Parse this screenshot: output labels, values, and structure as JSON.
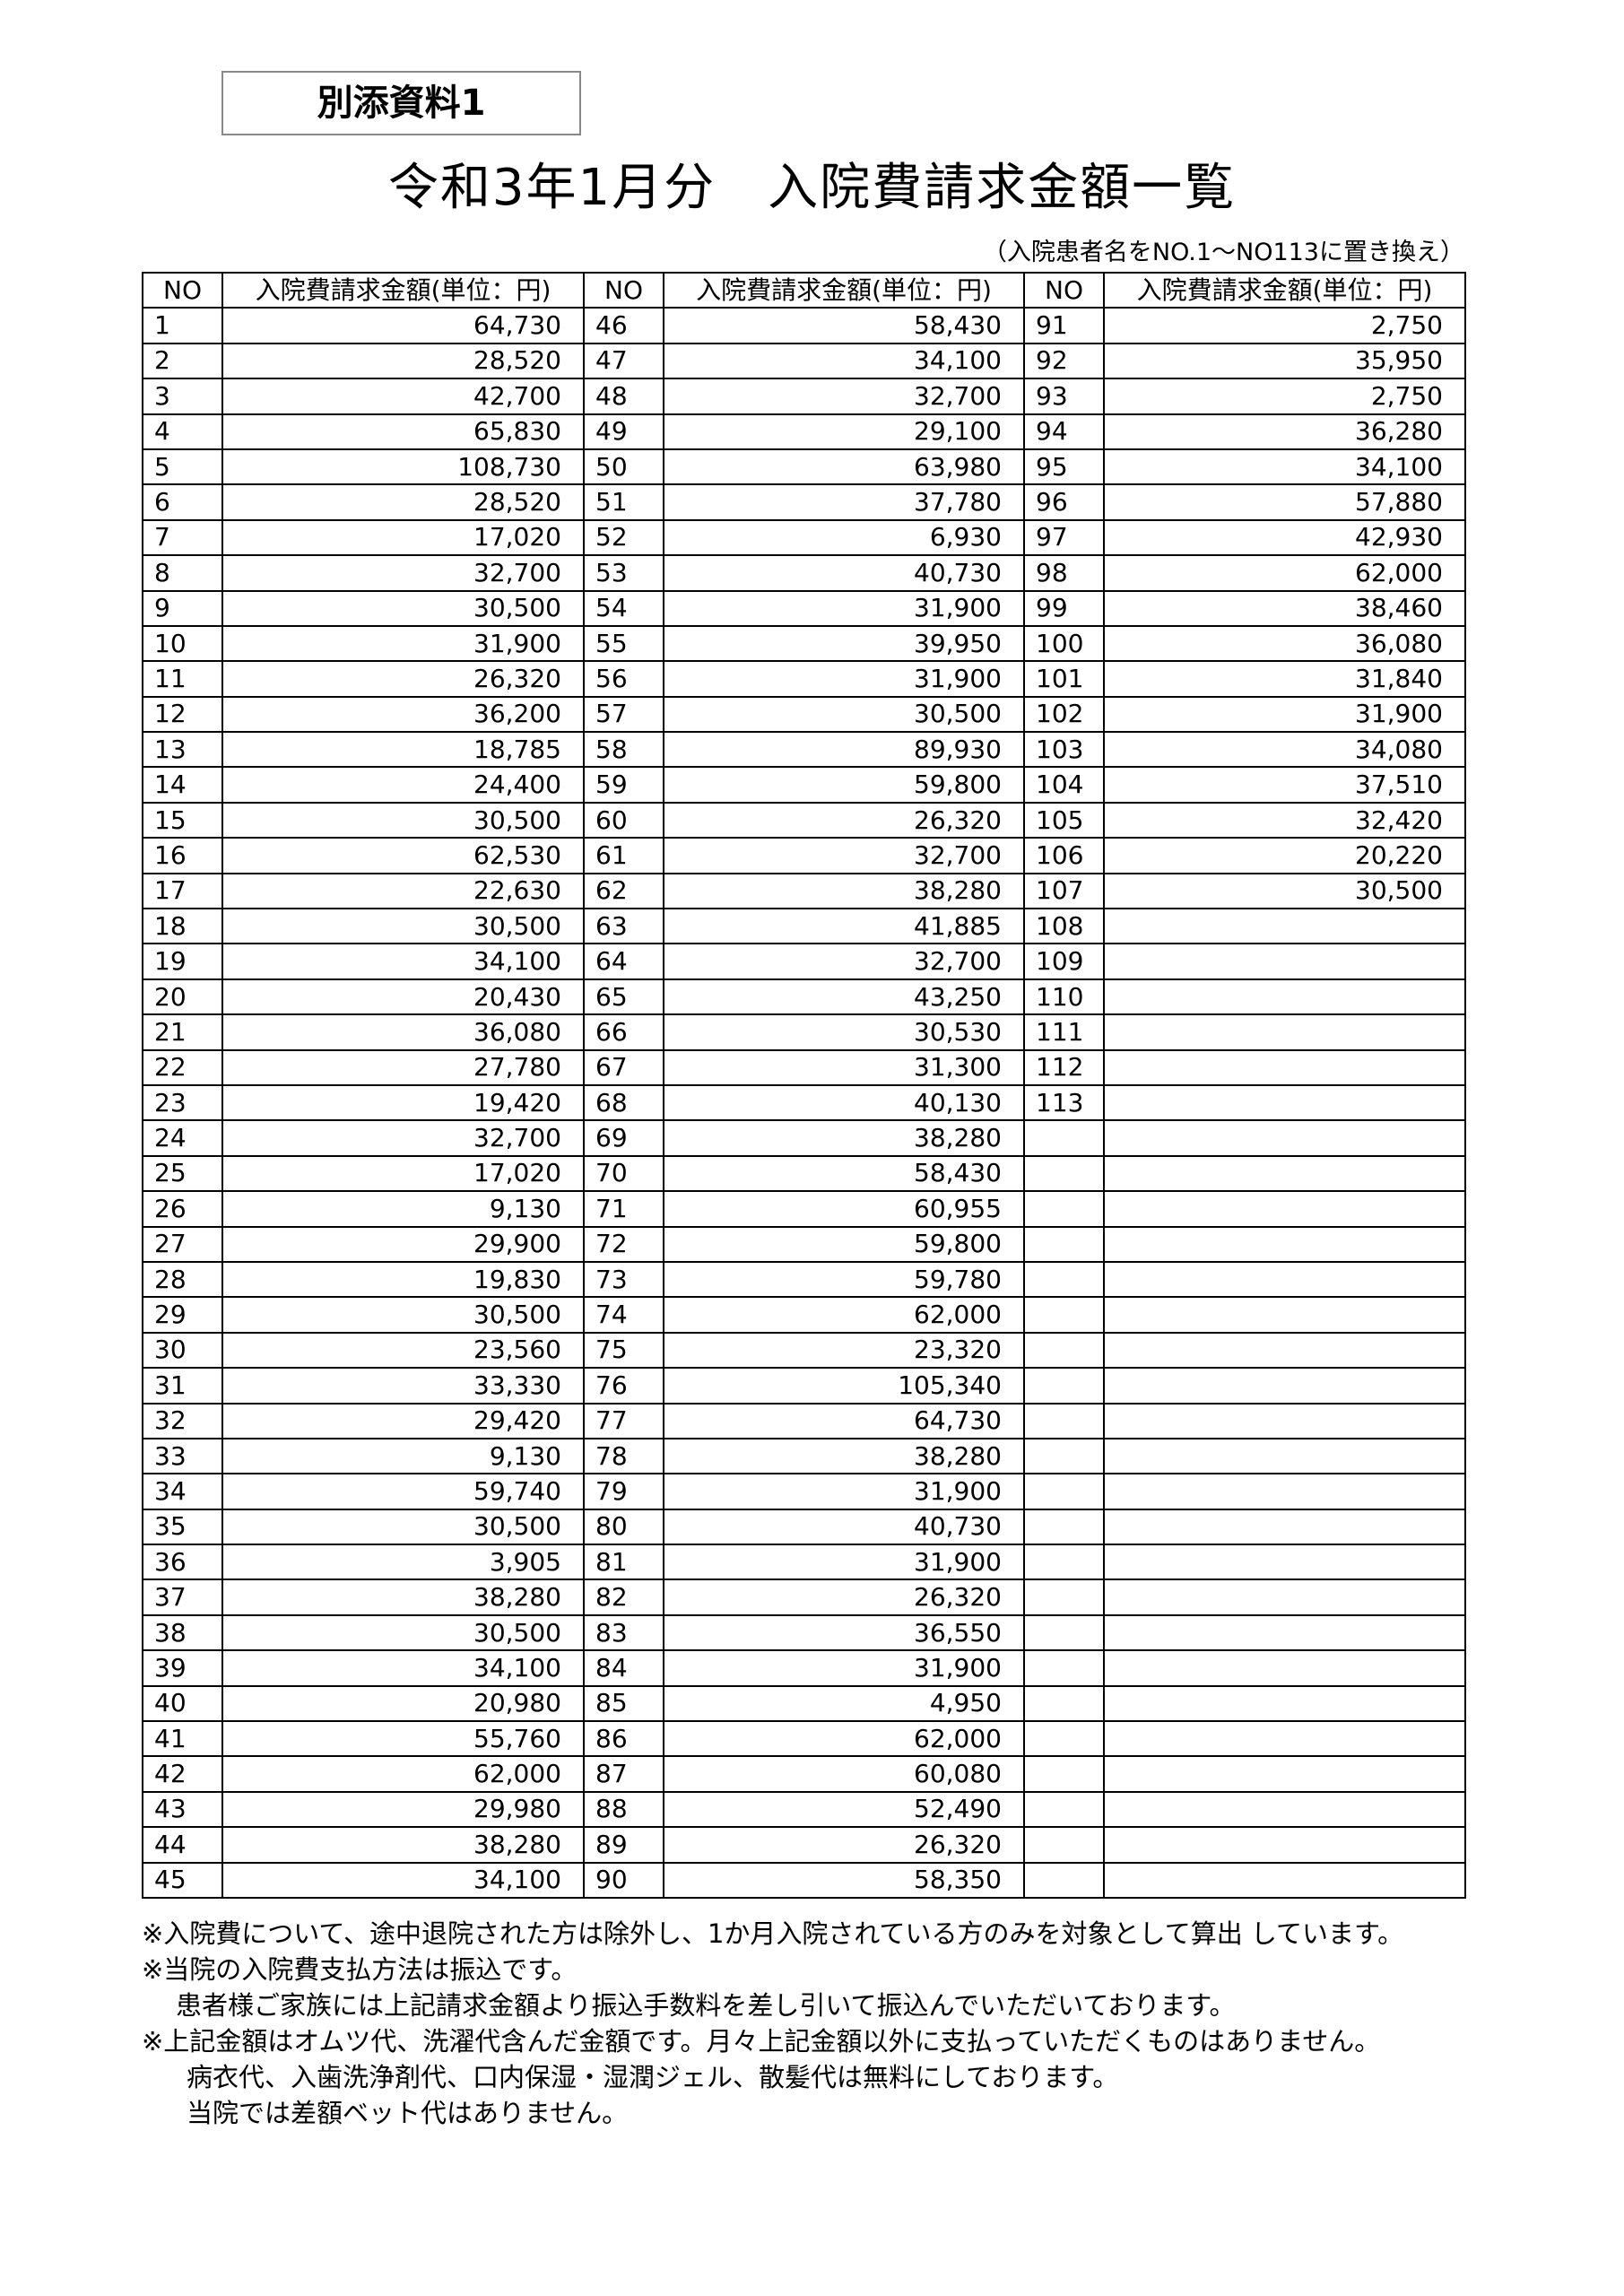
{
  "label": "別添資料1",
  "title": "令和3年1月分　入院費請求金額一覧",
  "subtitle": "（入院患者名をNO.1～NO113に置き換え）",
  "table": {
    "headers": {
      "no": "NO",
      "amount": "入院費請求金額(単位：円)"
    },
    "columns": [
      [
        [
          "1",
          "64,730"
        ],
        [
          "2",
          "28,520"
        ],
        [
          "3",
          "42,700"
        ],
        [
          "4",
          "65,830"
        ],
        [
          "5",
          "108,730"
        ],
        [
          "6",
          "28,520"
        ],
        [
          "7",
          "17,020"
        ],
        [
          "8",
          "32,700"
        ],
        [
          "9",
          "30,500"
        ],
        [
          "10",
          "31,900"
        ],
        [
          "11",
          "26,320"
        ],
        [
          "12",
          "36,200"
        ],
        [
          "13",
          "18,785"
        ],
        [
          "14",
          "24,400"
        ],
        [
          "15",
          "30,500"
        ],
        [
          "16",
          "62,530"
        ],
        [
          "17",
          "22,630"
        ],
        [
          "18",
          "30,500"
        ],
        [
          "19",
          "34,100"
        ],
        [
          "20",
          "20,430"
        ],
        [
          "21",
          "36,080"
        ],
        [
          "22",
          "27,780"
        ],
        [
          "23",
          "19,420"
        ],
        [
          "24",
          "32,700"
        ],
        [
          "25",
          "17,020"
        ],
        [
          "26",
          "9,130"
        ],
        [
          "27",
          "29,900"
        ],
        [
          "28",
          "19,830"
        ],
        [
          "29",
          "30,500"
        ],
        [
          "30",
          "23,560"
        ],
        [
          "31",
          "33,330"
        ],
        [
          "32",
          "29,420"
        ],
        [
          "33",
          "9,130"
        ],
        [
          "34",
          "59,740"
        ],
        [
          "35",
          "30,500"
        ],
        [
          "36",
          "3,905"
        ],
        [
          "37",
          "38,280"
        ],
        [
          "38",
          "30,500"
        ],
        [
          "39",
          "34,100"
        ],
        [
          "40",
          "20,980"
        ],
        [
          "41",
          "55,760"
        ],
        [
          "42",
          "62,000"
        ],
        [
          "43",
          "29,980"
        ],
        [
          "44",
          "38,280"
        ],
        [
          "45",
          "34,100"
        ]
      ],
      [
        [
          "46",
          "58,430"
        ],
        [
          "47",
          "34,100"
        ],
        [
          "48",
          "32,700"
        ],
        [
          "49",
          "29,100"
        ],
        [
          "50",
          "63,980"
        ],
        [
          "51",
          "37,780"
        ],
        [
          "52",
          "6,930"
        ],
        [
          "53",
          "40,730"
        ],
        [
          "54",
          "31,900"
        ],
        [
          "55",
          "39,950"
        ],
        [
          "56",
          "31,900"
        ],
        [
          "57",
          "30,500"
        ],
        [
          "58",
          "89,930"
        ],
        [
          "59",
          "59,800"
        ],
        [
          "60",
          "26,320"
        ],
        [
          "61",
          "32,700"
        ],
        [
          "62",
          "38,280"
        ],
        [
          "63",
          "41,885"
        ],
        [
          "64",
          "32,700"
        ],
        [
          "65",
          "43,250"
        ],
        [
          "66",
          "30,530"
        ],
        [
          "67",
          "31,300"
        ],
        [
          "68",
          "40,130"
        ],
        [
          "69",
          "38,280"
        ],
        [
          "70",
          "58,430"
        ],
        [
          "71",
          "60,955"
        ],
        [
          "72",
          "59,800"
        ],
        [
          "73",
          "59,780"
        ],
        [
          "74",
          "62,000"
        ],
        [
          "75",
          "23,320"
        ],
        [
          "76",
          "105,340"
        ],
        [
          "77",
          "64,730"
        ],
        [
          "78",
          "38,280"
        ],
        [
          "79",
          "31,900"
        ],
        [
          "80",
          "40,730"
        ],
        [
          "81",
          "31,900"
        ],
        [
          "82",
          "26,320"
        ],
        [
          "83",
          "36,550"
        ],
        [
          "84",
          "31,900"
        ],
        [
          "85",
          "4,950"
        ],
        [
          "86",
          "62,000"
        ],
        [
          "87",
          "60,080"
        ],
        [
          "88",
          "52,490"
        ],
        [
          "89",
          "26,320"
        ],
        [
          "90",
          "58,350"
        ]
      ],
      [
        [
          "91",
          "2,750"
        ],
        [
          "92",
          "35,950"
        ],
        [
          "93",
          "2,750"
        ],
        [
          "94",
          "36,280"
        ],
        [
          "95",
          "34,100"
        ],
        [
          "96",
          "57,880"
        ],
        [
          "97",
          "42,930"
        ],
        [
          "98",
          "62,000"
        ],
        [
          "99",
          "38,460"
        ],
        [
          "100",
          "36,080"
        ],
        [
          "101",
          "31,840"
        ],
        [
          "102",
          "31,900"
        ],
        [
          "103",
          "34,080"
        ],
        [
          "104",
          "37,510"
        ],
        [
          "105",
          "32,420"
        ],
        [
          "106",
          "20,220"
        ],
        [
          "107",
          "30,500"
        ],
        [
          "108",
          ""
        ],
        [
          "109",
          ""
        ],
        [
          "110",
          ""
        ],
        [
          "111",
          ""
        ],
        [
          "112",
          ""
        ],
        [
          "113",
          ""
        ],
        [
          "",
          ""
        ],
        [
          "",
          ""
        ],
        [
          "",
          ""
        ],
        [
          "",
          ""
        ],
        [
          "",
          ""
        ],
        [
          "",
          ""
        ],
        [
          "",
          ""
        ],
        [
          "",
          ""
        ],
        [
          "",
          ""
        ],
        [
          "",
          ""
        ],
        [
          "",
          ""
        ],
        [
          "",
          ""
        ],
        [
          "",
          ""
        ],
        [
          "",
          ""
        ],
        [
          "",
          ""
        ],
        [
          "",
          ""
        ],
        [
          "",
          ""
        ],
        [
          "",
          ""
        ],
        [
          "",
          ""
        ],
        [
          "",
          ""
        ],
        [
          "",
          ""
        ],
        [
          "",
          ""
        ]
      ]
    ]
  },
  "notes": [
    "※入院費について、途中退院された方は除外し、1か月入院されている方のみを対象として算出 しています。",
    "※当院の入院費支払方法は振込です。",
    "患者様ご家族には上記請求金額より振込手数料を差し引いて振込んでいただいております。",
    "※上記金額はオムツ代、洗濯代含んだ金額です。月々上記金額以外に支払っていただくものはありません。",
    "病衣代、入歯洗浄剤代、口内保湿・湿潤ジェル、散髪代は無料にしております。",
    "当院では差額ベット代はありません。"
  ]
}
